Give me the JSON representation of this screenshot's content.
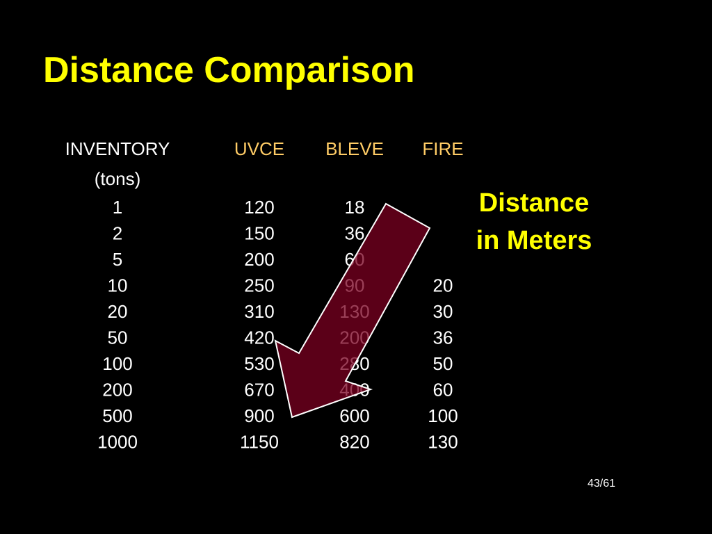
{
  "title": "Distance Comparison",
  "table": {
    "columns": [
      "INVENTORY",
      "UVCE",
      "BLEVE",
      "FIRE"
    ],
    "subheader": "(tons)",
    "rows": [
      [
        "1",
        "120",
        "18",
        null
      ],
      [
        "2",
        "150",
        "36",
        null
      ],
      [
        "5",
        "200",
        "60",
        null
      ],
      [
        "10",
        "250",
        "90",
        "20"
      ],
      [
        "20",
        "310",
        "130",
        "30"
      ],
      [
        "50",
        "420",
        "200",
        "36"
      ],
      [
        "100",
        "530",
        "280",
        "50"
      ],
      [
        "200",
        "670",
        "400",
        "60"
      ],
      [
        "500",
        "900",
        "600",
        "100"
      ],
      [
        "1000",
        "1150",
        "820",
        "130"
      ]
    ]
  },
  "note": [
    "Distance",
    "in Meters"
  ],
  "page_number": "43/61"
}
